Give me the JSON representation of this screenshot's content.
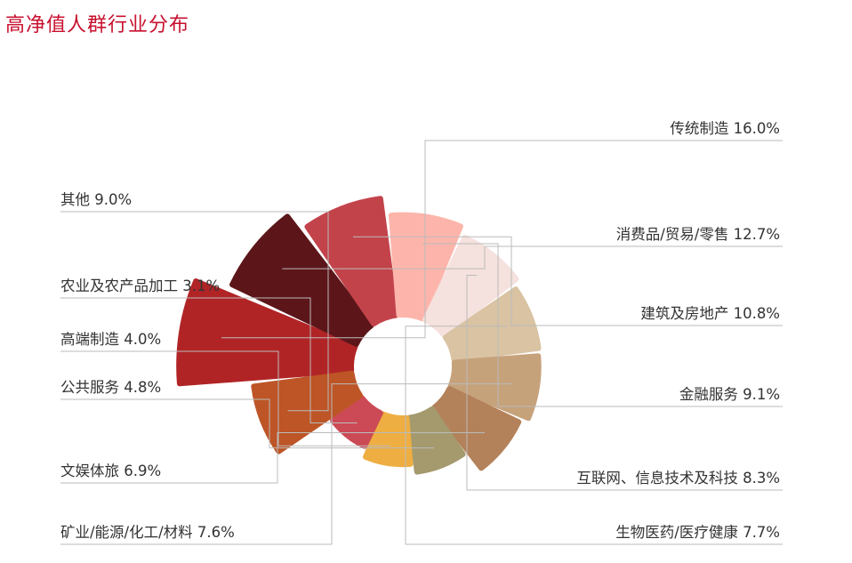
{
  "chart_data": {
    "type": "pie",
    "title": "高净值人群行业分布",
    "slices": [
      {
        "label": "传统制造",
        "value": 16.0,
        "display": "传统制造 16.0%",
        "color": "#b12426"
      },
      {
        "label": "消费品/贸易/零售",
        "value": 12.7,
        "display": "消费品/贸易/零售 12.7%",
        "color": "#5c161a"
      },
      {
        "label": "建筑及房地产",
        "value": 10.8,
        "display": "建筑及房地产 10.8%",
        "color": "#c3434a"
      },
      {
        "label": "金融服务",
        "value": 9.1,
        "display": "金融服务 9.1%",
        "color": "#fdb5ab"
      },
      {
        "label": "互联网、信息技术及科技",
        "value": 8.3,
        "display": "互联网、信息技术及科技 8.3%",
        "color": "#f5e1dd"
      },
      {
        "label": "生物医药/医疗健康",
        "value": 7.7,
        "display": "生物医药/医疗健康 7.7%",
        "color": "#d9c3a3"
      },
      {
        "label": "矿业/能源/化工/材料",
        "value": 7.6,
        "display": "矿业/能源/化工/材料 7.6%",
        "color": "#c6a27b"
      },
      {
        "label": "文娱体旅",
        "value": 6.9,
        "display": "文娱体旅 6.9%",
        "color": "#b3825a"
      },
      {
        "label": "公共服务",
        "value": 4.8,
        "display": "公共服务 4.8%",
        "color": "#a49a6e"
      },
      {
        "label": "高端制造",
        "value": 4.0,
        "display": "高端制造 4.0%",
        "color": "#efae42"
      },
      {
        "label": "农业及农产品加工",
        "value": 3.1,
        "display": "农业及农产品加工 3.1%",
        "color": "#cc4a55"
      },
      {
        "label": "其他",
        "value": 9.0,
        "display": "其他 9.0%",
        "color": "#bd5526"
      }
    ]
  }
}
